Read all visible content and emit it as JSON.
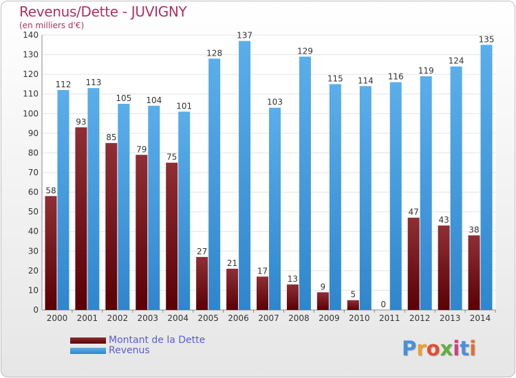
{
  "chart_data": {
    "type": "bar",
    "title": "Revenus/Dette - JUVIGNY",
    "subtitle": "(en milliers d'€)",
    "categories": [
      "2000",
      "2001",
      "2002",
      "2003",
      "2004",
      "2005",
      "2006",
      "2007",
      "2008",
      "2009",
      "2010",
      "2011",
      "2012",
      "2013",
      "2014"
    ],
    "series": [
      {
        "name": "Montant de la Dette",
        "color": "#7a0d10",
        "values": [
          58,
          93,
          85,
          79,
          75,
          27,
          21,
          17,
          13,
          9,
          5,
          0,
          47,
          43,
          38
        ]
      },
      {
        "name": "Revenus",
        "color": "#4aa3e6",
        "values": [
          112,
          113,
          105,
          104,
          101,
          128,
          137,
          103,
          129,
          115,
          114,
          116,
          119,
          124,
          135
        ]
      }
    ],
    "ylim": [
      0,
      140
    ],
    "yticks": [
      0,
      10,
      20,
      30,
      40,
      50,
      60,
      70,
      80,
      90,
      100,
      110,
      120,
      130,
      140
    ],
    "grid": true,
    "legend_position": "bottom-left"
  },
  "logo": {
    "text": "Proxiti"
  }
}
